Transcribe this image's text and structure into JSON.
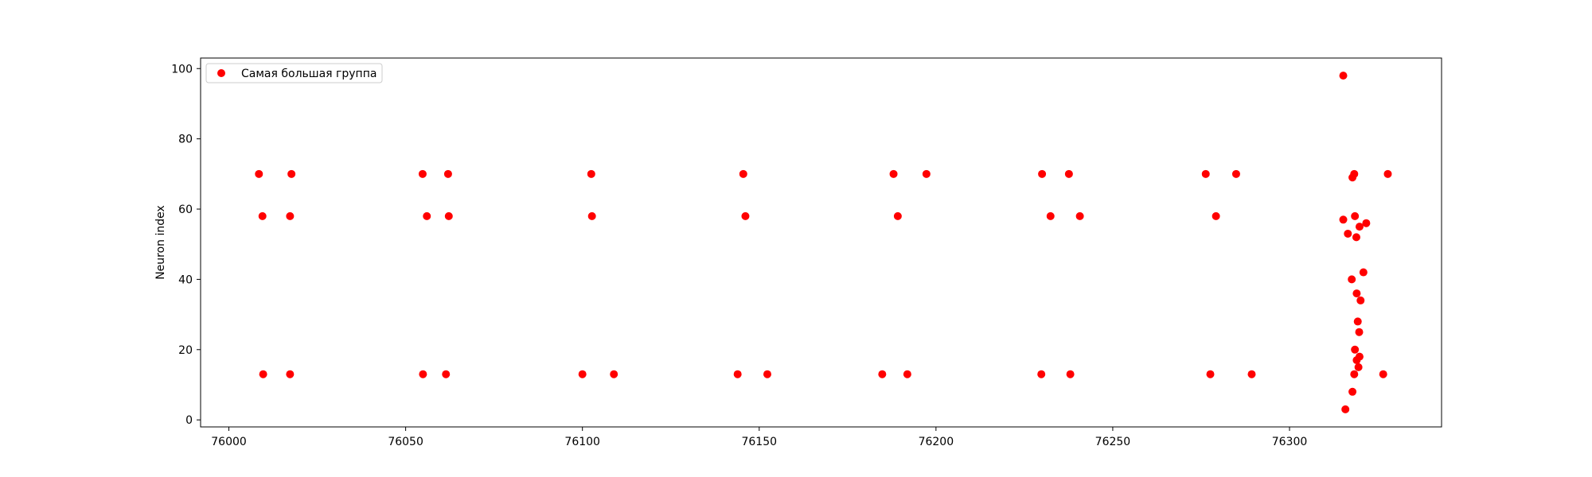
{
  "chart_data": {
    "type": "scatter",
    "title": "",
    "xlabel": "",
    "ylabel": "Neuron index",
    "xlim": [
      75992,
      76343
    ],
    "ylim": [
      -2,
      103
    ],
    "xticks": [
      76000,
      76050,
      76100,
      76150,
      76200,
      76250,
      76300
    ],
    "yticks": [
      0,
      20,
      40,
      60,
      80,
      100
    ],
    "grid": false,
    "legend_position": "top-left",
    "series": [
      {
        "name": "Самая большая группа",
        "color": "#ff0000",
        "points": [
          {
            "x": 76008.5,
            "y": 70
          },
          {
            "x": 76009.5,
            "y": 58
          },
          {
            "x": 76009.7,
            "y": 13
          },
          {
            "x": 76017.7,
            "y": 70
          },
          {
            "x": 76017.3,
            "y": 58
          },
          {
            "x": 76017.3,
            "y": 13
          },
          {
            "x": 76054.8,
            "y": 70
          },
          {
            "x": 76056.0,
            "y": 58
          },
          {
            "x": 76054.9,
            "y": 13
          },
          {
            "x": 76062.0,
            "y": 70
          },
          {
            "x": 76062.2,
            "y": 58
          },
          {
            "x": 76061.4,
            "y": 13
          },
          {
            "x": 76102.5,
            "y": 70
          },
          {
            "x": 76102.7,
            "y": 58
          },
          {
            "x": 76100.0,
            "y": 13
          },
          {
            "x": 76108.9,
            "y": 13
          },
          {
            "x": 76145.5,
            "y": 70
          },
          {
            "x": 76146.1,
            "y": 58
          },
          {
            "x": 76143.9,
            "y": 13
          },
          {
            "x": 76152.3,
            "y": 13
          },
          {
            "x": 76188.0,
            "y": 70
          },
          {
            "x": 76189.2,
            "y": 58
          },
          {
            "x": 76184.8,
            "y": 13
          },
          {
            "x": 76191.9,
            "y": 13
          },
          {
            "x": 76197.3,
            "y": 70
          },
          {
            "x": 76230.0,
            "y": 70
          },
          {
            "x": 76232.4,
            "y": 58
          },
          {
            "x": 76229.8,
            "y": 13
          },
          {
            "x": 76237.6,
            "y": 70
          },
          {
            "x": 76238.0,
            "y": 13
          },
          {
            "x": 76240.7,
            "y": 58
          },
          {
            "x": 76276.3,
            "y": 70
          },
          {
            "x": 76279.2,
            "y": 58
          },
          {
            "x": 76277.6,
            "y": 13
          },
          {
            "x": 76284.9,
            "y": 70
          },
          {
            "x": 76289.3,
            "y": 13
          },
          {
            "x": 76315.2,
            "y": 98
          },
          {
            "x": 76315.2,
            "y": 57
          },
          {
            "x": 76316.5,
            "y": 53
          },
          {
            "x": 76318.3,
            "y": 70
          },
          {
            "x": 76317.8,
            "y": 69
          },
          {
            "x": 76318.5,
            "y": 58
          },
          {
            "x": 76319.8,
            "y": 55
          },
          {
            "x": 76318.9,
            "y": 52
          },
          {
            "x": 76321.7,
            "y": 56
          },
          {
            "x": 76317.6,
            "y": 40
          },
          {
            "x": 76320.9,
            "y": 42
          },
          {
            "x": 76319.0,
            "y": 36
          },
          {
            "x": 76320.1,
            "y": 34
          },
          {
            "x": 76319.3,
            "y": 28
          },
          {
            "x": 76319.7,
            "y": 25
          },
          {
            "x": 76318.5,
            "y": 20
          },
          {
            "x": 76319.8,
            "y": 18
          },
          {
            "x": 76319.0,
            "y": 17
          },
          {
            "x": 76319.5,
            "y": 15
          },
          {
            "x": 76318.3,
            "y": 13
          },
          {
            "x": 76317.8,
            "y": 8
          },
          {
            "x": 76315.8,
            "y": 3
          },
          {
            "x": 76326.5,
            "y": 13
          },
          {
            "x": 76327.8,
            "y": 70
          }
        ]
      }
    ]
  }
}
